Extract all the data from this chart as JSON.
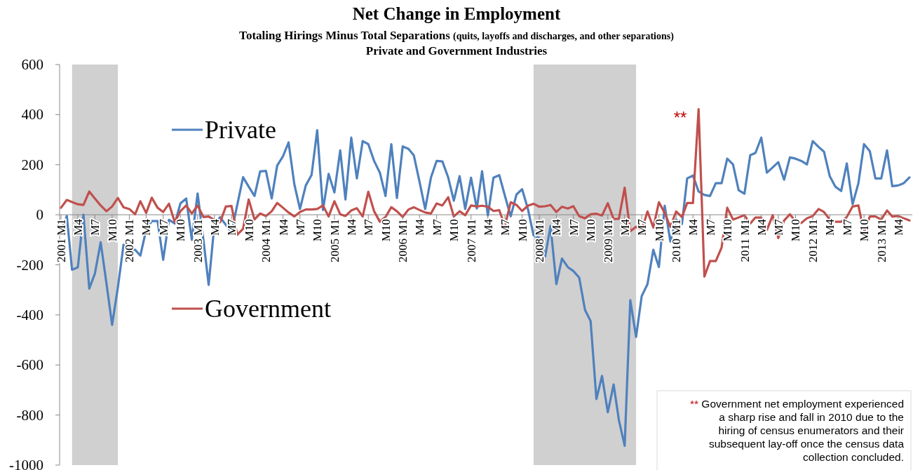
{
  "chart_data": {
    "type": "line",
    "title": "Net Change in Employment",
    "subtitle": "Totaling Hirings Minus Total Separations (quits, layoffs and discharges, and other separations)\nPrivate and Government Industries",
    "x": [
      "2001-01",
      "2001-02",
      "2001-03",
      "2001-04",
      "2001-05",
      "2001-06",
      "2001-07",
      "2001-08",
      "2001-09",
      "2001-10",
      "2001-11",
      "2001-12",
      "2002-01",
      "2002-02",
      "2002-03",
      "2002-04",
      "2002-05",
      "2002-06",
      "2002-07",
      "2002-08",
      "2002-09",
      "2002-10",
      "2002-11",
      "2002-12",
      "2003-01",
      "2003-02",
      "2003-03",
      "2003-04",
      "2003-05",
      "2003-06",
      "2003-07",
      "2003-08",
      "2003-09",
      "2003-10",
      "2003-11",
      "2003-12",
      "2004-01",
      "2004-02",
      "2004-03",
      "2004-04",
      "2004-05",
      "2004-06",
      "2004-07",
      "2004-08",
      "2004-09",
      "2004-10",
      "2004-11",
      "2004-12",
      "2005-01",
      "2005-02",
      "2005-03",
      "2005-04",
      "2005-05",
      "2005-06",
      "2005-07",
      "2005-08",
      "2005-09",
      "2005-10",
      "2005-11",
      "2005-12",
      "2006-01",
      "2006-02",
      "2006-03",
      "2006-04",
      "2006-05",
      "2006-06",
      "2006-07",
      "2006-08",
      "2006-09",
      "2006-10",
      "2006-11",
      "2006-12",
      "2007-01",
      "2007-02",
      "2007-03",
      "2007-04",
      "2007-05",
      "2007-06",
      "2007-07",
      "2007-08",
      "2007-09",
      "2007-10",
      "2007-11",
      "2007-12",
      "2008-01",
      "2008-02",
      "2008-03",
      "2008-04",
      "2008-05",
      "2008-06",
      "2008-07",
      "2008-08",
      "2008-09",
      "2008-10",
      "2008-11",
      "2008-12",
      "2009-01",
      "2009-02",
      "2009-03",
      "2009-04",
      "2009-05",
      "2009-06",
      "2009-07",
      "2009-08",
      "2009-09",
      "2009-10",
      "2009-11",
      "2009-12",
      "2010-01",
      "2010-02",
      "2010-03",
      "2010-04",
      "2010-05",
      "2010-06",
      "2010-07",
      "2010-08",
      "2010-09",
      "2010-10",
      "2010-11",
      "2010-12",
      "2011-01",
      "2011-02",
      "2011-03",
      "2011-04",
      "2011-05",
      "2011-06",
      "2011-07",
      "2011-08",
      "2011-09",
      "2011-10",
      "2011-11",
      "2011-12",
      "2012-01",
      "2012-02",
      "2012-03",
      "2012-04",
      "2012-05",
      "2012-06",
      "2012-07",
      "2012-08",
      "2012-09",
      "2012-10",
      "2012-11",
      "2012-12",
      "2013-01",
      "2013-02",
      "2013-03",
      "2013-04",
      "2013-05",
      "2013-06"
    ],
    "series": [
      {
        "name": "Private",
        "color": "#4f81bd",
        "values": [
          -70,
          -5,
          -220,
          -210,
          0,
          -295,
          -235,
          -110,
          -275,
          -440,
          -290,
          -120,
          -135,
          -140,
          -163,
          -60,
          -25,
          -25,
          -180,
          -20,
          -35,
          45,
          65,
          -100,
          85,
          -100,
          -280,
          -37,
          -10,
          -40,
          -70,
          40,
          150,
          112,
          75,
          173,
          175,
          65,
          196,
          233,
          289,
          121,
          23,
          117,
          159,
          338,
          19,
          163,
          89,
          257,
          61,
          308,
          145,
          294,
          282,
          215,
          168,
          75,
          282,
          67,
          273,
          263,
          238,
          131,
          23,
          149,
          215,
          213,
          149,
          56,
          154,
          23,
          148,
          25,
          174,
          -3,
          148,
          158,
          76,
          -6,
          81,
          102,
          23,
          -82,
          -93,
          -167,
          -45,
          -277,
          -175,
          -209,
          -225,
          -251,
          -380,
          -425,
          -736,
          -644,
          -789,
          -678,
          -820,
          -923,
          -341,
          -488,
          -325,
          -277,
          -140,
          -209,
          36,
          -107,
          -19,
          -37,
          145,
          157,
          93,
          79,
          75,
          126,
          126,
          224,
          201,
          98,
          84,
          238,
          247,
          308,
          168,
          189,
          210,
          140,
          229,
          224,
          215,
          201,
          294,
          271,
          252,
          154,
          112,
          95,
          205,
          42,
          126,
          282,
          254,
          145,
          145,
          257,
          114,
          117,
          126,
          149
        ]
      },
      {
        "name": "Government",
        "color": "#c0504d",
        "values": [
          28,
          59,
          51,
          42,
          39,
          93,
          65,
          37,
          14,
          33,
          67,
          30,
          23,
          2,
          54,
          7,
          68,
          28,
          11,
          44,
          -30,
          14,
          37,
          5,
          37,
          -9,
          -7,
          -21,
          -30,
          33,
          35,
          -80,
          -56,
          61,
          -19,
          5,
          -5,
          14,
          47,
          28,
          9,
          -7,
          11,
          21,
          21,
          23,
          37,
          -7,
          54,
          2,
          -5,
          17,
          26,
          -7,
          92,
          14,
          -28,
          -9,
          30,
          14,
          -9,
          21,
          30,
          19,
          9,
          5,
          45,
          37,
          70,
          -7,
          14,
          -2,
          37,
          33,
          36,
          32,
          15,
          18,
          -45,
          50,
          39,
          15,
          36,
          44,
          32,
          34,
          39,
          11,
          32,
          25,
          34,
          -6,
          -14,
          2,
          4,
          -3,
          46,
          -17,
          -16,
          108,
          -66,
          -48,
          -61,
          13,
          -51,
          50,
          7,
          -48,
          13,
          -9,
          47,
          47,
          422,
          -247,
          -185,
          -185,
          -131,
          28,
          -19,
          -11,
          -2,
          -35,
          -11,
          -11,
          -61,
          -2,
          -93,
          -23,
          2,
          -26,
          -33,
          -14,
          -5,
          23,
          11,
          -19,
          -28,
          -28,
          -9,
          33,
          37,
          -70,
          -7,
          -7,
          -19,
          17,
          -7,
          -5,
          -14,
          -23
        ]
      }
    ],
    "xlim": [
      "2001-01",
      "2013-06"
    ],
    "xticks": [
      {
        "value": "2001-01",
        "label": "2001 M1"
      },
      {
        "value": "2001-04",
        "label": "M4"
      },
      {
        "value": "2001-07",
        "label": "M7"
      },
      {
        "value": "2001-10",
        "label": "M10"
      },
      {
        "value": "2002-01",
        "label": "2002 M1"
      },
      {
        "value": "2002-04",
        "label": "M4"
      },
      {
        "value": "2002-07",
        "label": "M7"
      },
      {
        "value": "2002-10",
        "label": "M10"
      },
      {
        "value": "2003-01",
        "label": "2003 M1"
      },
      {
        "value": "2003-04",
        "label": "M4"
      },
      {
        "value": "2003-07",
        "label": "M7"
      },
      {
        "value": "2003-10",
        "label": "M10"
      },
      {
        "value": "2004-01",
        "label": "2004 M1"
      },
      {
        "value": "2004-04",
        "label": "M4"
      },
      {
        "value": "2004-07",
        "label": "M7"
      },
      {
        "value": "2004-10",
        "label": "M10"
      },
      {
        "value": "2005-01",
        "label": "2005 M1"
      },
      {
        "value": "2005-04",
        "label": "M4"
      },
      {
        "value": "2005-07",
        "label": "M7"
      },
      {
        "value": "2005-10",
        "label": "M10"
      },
      {
        "value": "2006-01",
        "label": "2006 M1"
      },
      {
        "value": "2006-04",
        "label": "M4"
      },
      {
        "value": "2006-07",
        "label": "M7"
      },
      {
        "value": "2006-10",
        "label": "M10"
      },
      {
        "value": "2007-01",
        "label": "2007 M1"
      },
      {
        "value": "2007-04",
        "label": "M4"
      },
      {
        "value": "2007-07",
        "label": "M7"
      },
      {
        "value": "2007-10",
        "label": "M10"
      },
      {
        "value": "2008-01",
        "label": "2008 M1"
      },
      {
        "value": "2008-04",
        "label": "M4"
      },
      {
        "value": "2008-07",
        "label": "M7"
      },
      {
        "value": "2008-10",
        "label": "M10"
      },
      {
        "value": "2009-01",
        "label": "2009 M1"
      },
      {
        "value": "2009-04",
        "label": "M4"
      },
      {
        "value": "2009-07",
        "label": "M7"
      },
      {
        "value": "2009-10",
        "label": "M10"
      },
      {
        "value": "2010-01",
        "label": "2010 M1"
      },
      {
        "value": "2010-04",
        "label": "M4"
      },
      {
        "value": "2010-07",
        "label": "M7"
      },
      {
        "value": "2010-10",
        "label": "M10"
      },
      {
        "value": "2011-01",
        "label": "2011 M1"
      },
      {
        "value": "2011-04",
        "label": "M4"
      },
      {
        "value": "2011-07",
        "label": "M7"
      },
      {
        "value": "2011-10",
        "label": "M10"
      },
      {
        "value": "2012-01",
        "label": "2012 M1"
      },
      {
        "value": "2012-04",
        "label": "M4"
      },
      {
        "value": "2012-07",
        "label": "M7"
      },
      {
        "value": "2012-10",
        "label": "M10"
      },
      {
        "value": "2013-01",
        "label": "2013 M1"
      },
      {
        "value": "2013-04",
        "label": "M4"
      }
    ],
    "ylim": [
      -1000,
      600
    ],
    "yticks": [
      -1000,
      -800,
      -600,
      -400,
      -200,
      0,
      200,
      400,
      600
    ],
    "bands": [
      {
        "axis": "x",
        "from": "2001-03",
        "to": "2001-11",
        "color": "#d0d0d0"
      },
      {
        "axis": "x",
        "from": "2007-12",
        "to": "2009-06",
        "color": "#d0d0d0"
      }
    ],
    "annotations": [
      "**",
      "** Government net employment experienced a sharp rise and fall in 2010 due to the hiring of census enumerators and their subsequent lay-off once the census data collection concluded."
    ],
    "legend": "left",
    "grid": false
  }
}
